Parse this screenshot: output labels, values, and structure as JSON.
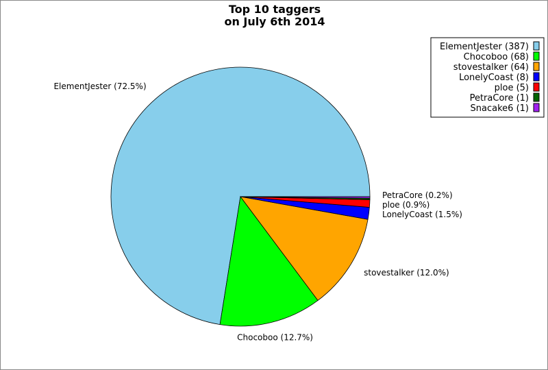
{
  "chart_data": {
    "type": "pie",
    "title_lines": [
      "Top 10 taggers",
      "on July 6th 2014"
    ],
    "slices": [
      {
        "name": "ElementJester",
        "value": 387,
        "percent_label": "ElementJester (72.5%)",
        "legend_label": "ElementJester (387)",
        "color": "#87ceeb",
        "show_label": true
      },
      {
        "name": "Chocoboo",
        "value": 68,
        "percent_label": "Chocoboo (12.7%)",
        "legend_label": "Chocoboo (68)",
        "color": "#00ff00",
        "show_label": true
      },
      {
        "name": "stovestalker",
        "value": 64,
        "percent_label": "stovestalker (12.0%)",
        "legend_label": "stovestalker (64)",
        "color": "#ffa500",
        "show_label": true
      },
      {
        "name": "LonelyCoast",
        "value": 8,
        "percent_label": "LonelyCoast (1.5%)",
        "legend_label": "LonelyCoast (8)",
        "color": "#0000ff",
        "show_label": true
      },
      {
        "name": "ploe",
        "value": 5,
        "percent_label": "ploe (0.9%)",
        "legend_label": "ploe (5)",
        "color": "#ff0000",
        "show_label": true
      },
      {
        "name": "PetraCore",
        "value": 1,
        "percent_label": "PetraCore (0.2%)",
        "legend_label": "PetraCore (1)",
        "color": "#006400",
        "show_label": true
      },
      {
        "name": "Snacake6",
        "value": 1,
        "percent_label": "",
        "legend_label": "Snacake6 (1)",
        "color": "#a020f0",
        "show_label": false
      }
    ],
    "legend_position": "top-right"
  }
}
